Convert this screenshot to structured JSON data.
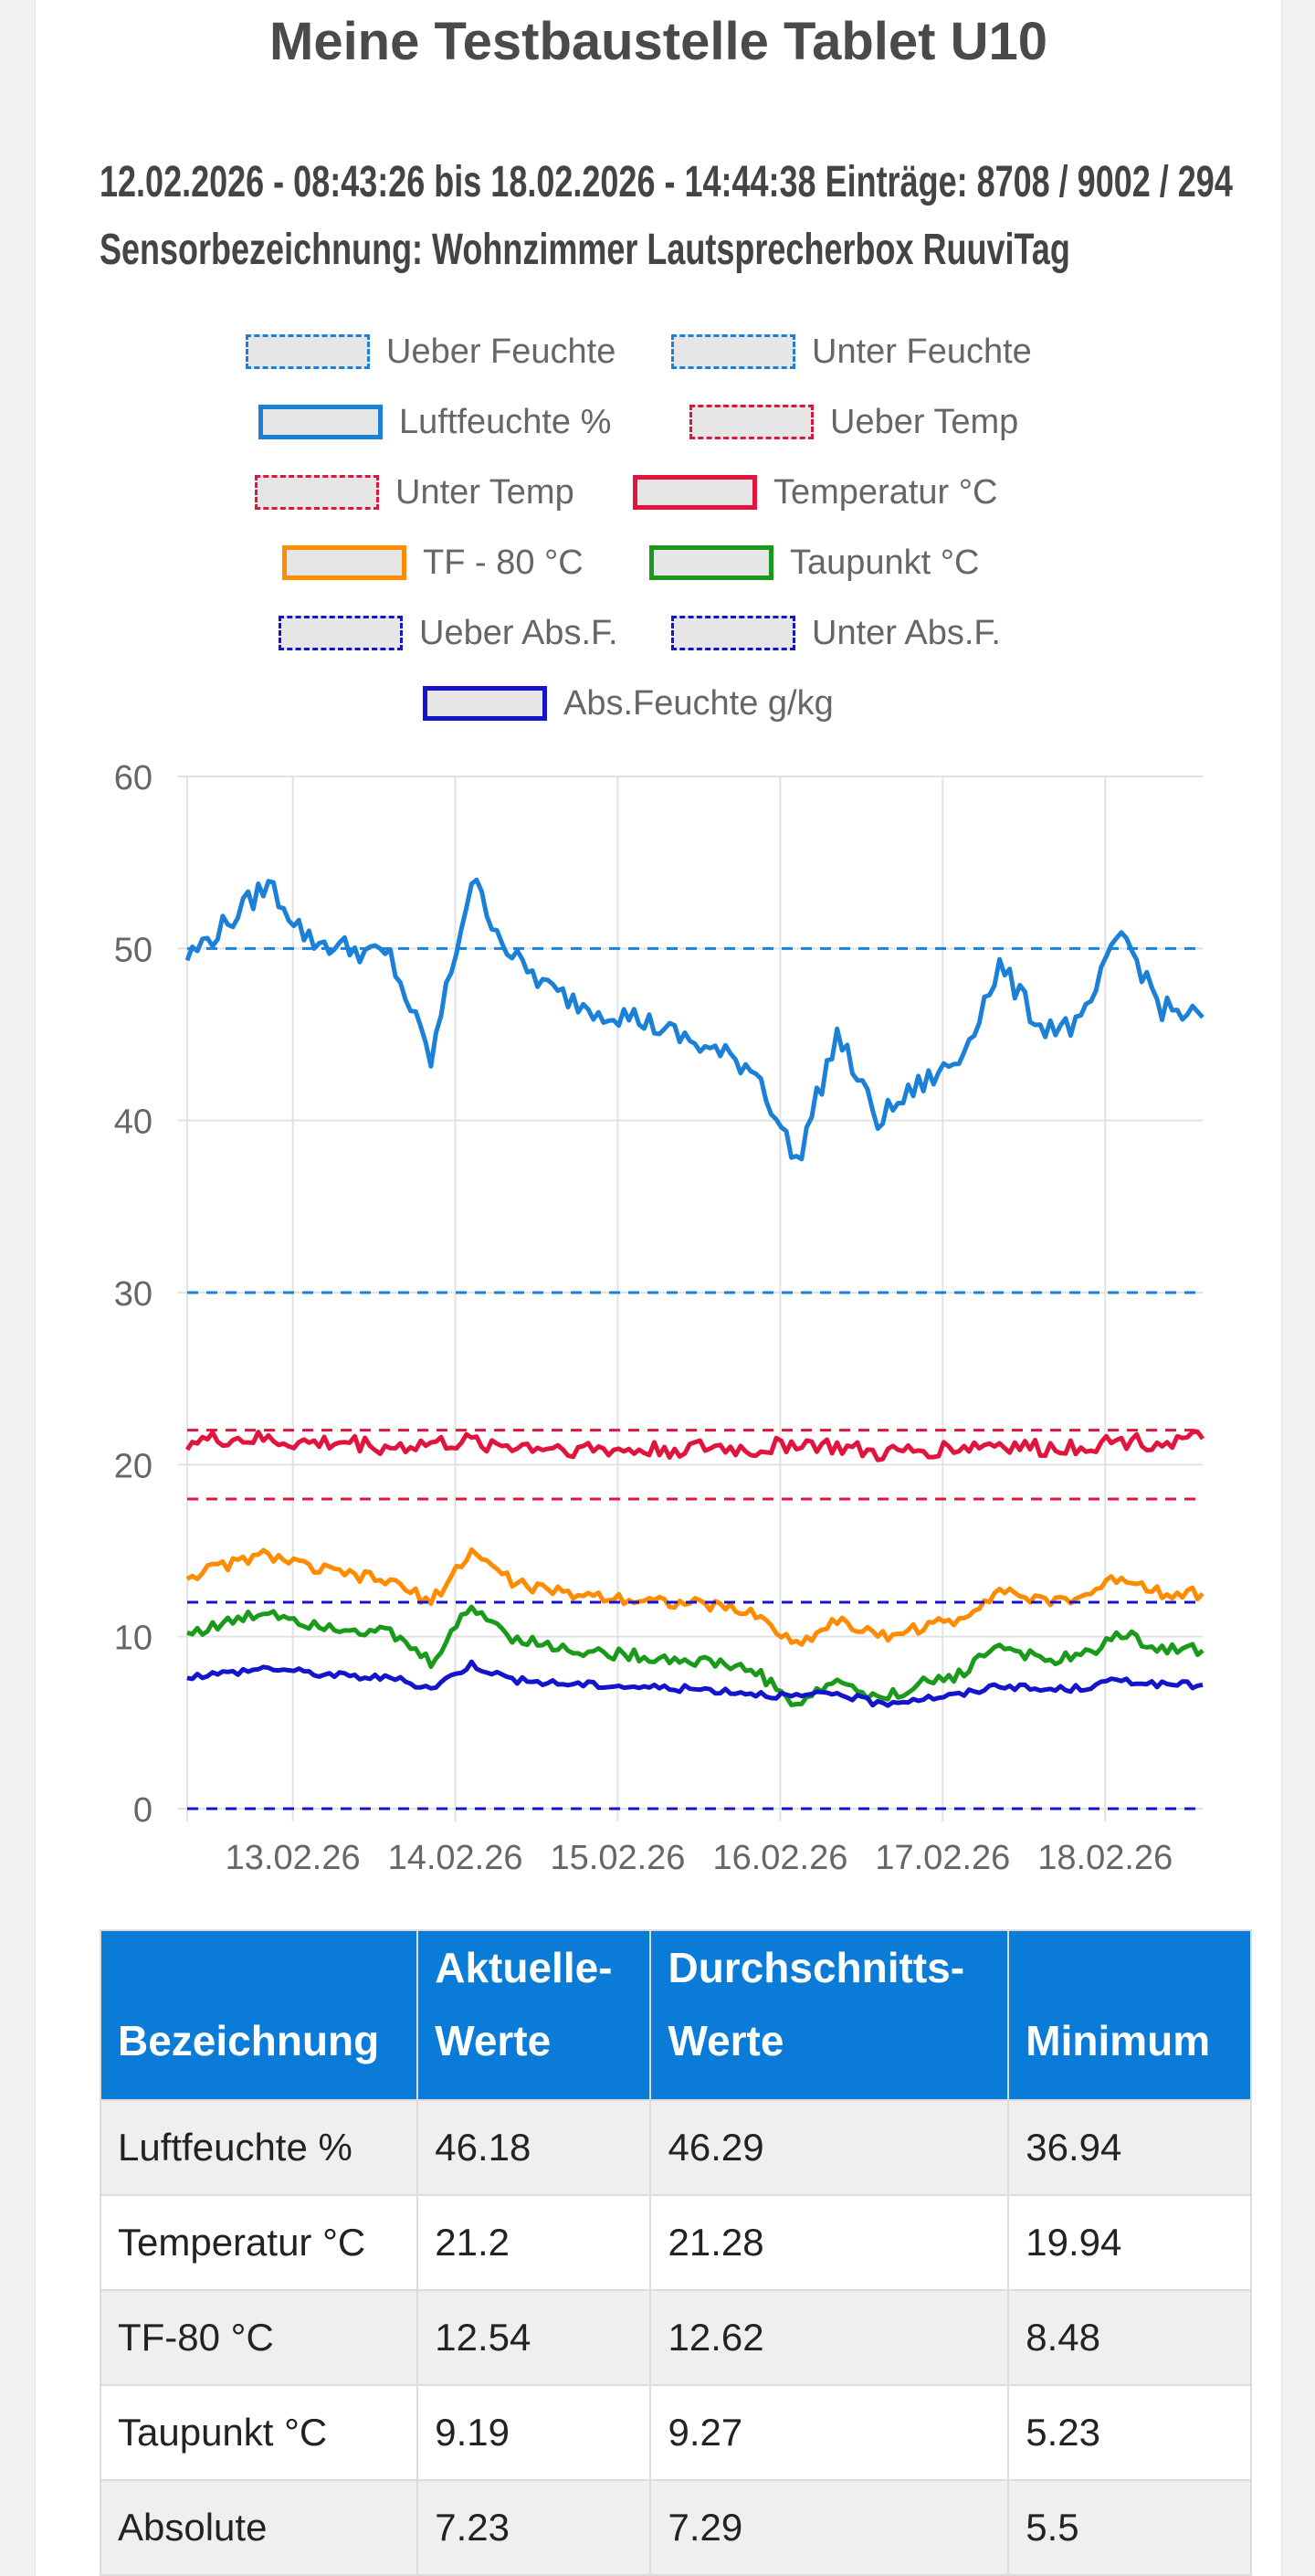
{
  "title": "Meine Testbaustelle Tablet U10",
  "subtitle_line1": "12.02.2026 - 08:43:26 bis 18.02.2026 - 14:44:38 Einträge: 8708 / 9002 / 294",
  "subtitle_line2": "Sensorbezeichnung: Wohnzimmer Lautsprecherbox RuuviTag",
  "legend": [
    {
      "label": "Ueber Feuchte",
      "color": "#1a80d8",
      "style": "dashed"
    },
    {
      "label": "Unter Feuchte",
      "color": "#1a80d8",
      "style": "dashed"
    },
    {
      "label": "Luftfeuchte %",
      "color": "#1a80d8",
      "style": "solid"
    },
    {
      "label": "Ueber Temp",
      "color": "#e0143c",
      "style": "dashed"
    },
    {
      "label": "Unter Temp",
      "color": "#e0143c",
      "style": "dashed"
    },
    {
      "label": "Temperatur °C",
      "color": "#e0143c",
      "style": "solid"
    },
    {
      "label": "TF - 80 °C",
      "color": "#ff8c00",
      "style": "solid"
    },
    {
      "label": "Taupunkt °C",
      "color": "#1a9a1a",
      "style": "solid"
    },
    {
      "label": "Ueber Abs.F.",
      "color": "#1414cc",
      "style": "dashed"
    },
    {
      "label": "Unter Abs.F.",
      "color": "#1414cc",
      "style": "dashed"
    },
    {
      "label": "Abs.Feuchte g/kg",
      "color": "#1414cc",
      "style": "solid"
    }
  ],
  "chart_data": {
    "type": "line",
    "ylim": [
      0,
      60
    ],
    "yticks": [
      "0",
      "10",
      "20",
      "30",
      "40",
      "50",
      "60"
    ],
    "xticks": [
      "13.02.26",
      "14.02.26",
      "15.02.26",
      "16.02.26",
      "17.02.26",
      "18.02.26"
    ],
    "grid": true,
    "legend_position": "top",
    "x_days": [
      0,
      0.25,
      0.5,
      0.75,
      1.0,
      1.25,
      1.5,
      1.75,
      2.0,
      2.25,
      2.5,
      2.75,
      3.0,
      3.25,
      3.5,
      3.75,
      4.0,
      4.25,
      4.5,
      4.75,
      5.0,
      5.25,
      5.5,
      5.75,
      6.0,
      6.25
    ],
    "series": [
      {
        "name": "Ueber Feuchte",
        "color": "#1a80d8",
        "dashed": true,
        "constant": 50
      },
      {
        "name": "Unter Feuchte",
        "color": "#1a80d8",
        "dashed": true,
        "constant": 30
      },
      {
        "name": "Luftfeuchte %",
        "color": "#1a80d8",
        "values": [
          49.5,
          51.5,
          53.8,
          50.5,
          50.0,
          49.5,
          43.5,
          54.0,
          49.5,
          47.5,
          46.5,
          46.0,
          45.0,
          44.0,
          43.0,
          37.5,
          45.0,
          40.0,
          42.0,
          43.5,
          49.0,
          45.5,
          45.5,
          51.0,
          46.5,
          46.0
        ]
      },
      {
        "name": "Ueber Temp",
        "color": "#e0143c",
        "dashed": true,
        "constant": 22
      },
      {
        "name": "Unter Temp",
        "color": "#e0143c",
        "dashed": true,
        "constant": 18
      },
      {
        "name": "Temperatur °C",
        "color": "#e0143c",
        "values": [
          21.3,
          21.5,
          21.4,
          21.2,
          21.3,
          21.0,
          21.2,
          21.3,
          21.1,
          21.0,
          20.9,
          20.8,
          20.9,
          21.0,
          20.8,
          21.3,
          21.0,
          20.6,
          20.8,
          21.0,
          21.2,
          20.9,
          21.1,
          21.4,
          21.3,
          21.5
        ]
      },
      {
        "name": "TF - 80 °C",
        "color": "#ff8c00",
        "values": [
          13.5,
          14.2,
          14.8,
          14.0,
          13.6,
          13.2,
          12.0,
          15.0,
          13.2,
          12.6,
          12.4,
          12.2,
          12.0,
          11.8,
          11.3,
          9.5,
          11.0,
          10.0,
          10.5,
          11.0,
          12.8,
          12.0,
          12.3,
          13.5,
          12.6,
          12.5
        ]
      },
      {
        "name": "Taupunkt °C",
        "color": "#1a9a1a",
        "values": [
          10.2,
          10.8,
          11.5,
          10.8,
          10.5,
          10.2,
          8.5,
          11.8,
          10.0,
          9.4,
          9.1,
          8.9,
          8.7,
          8.5,
          8.0,
          6.0,
          7.5,
          6.3,
          7.2,
          7.8,
          9.6,
          8.6,
          8.8,
          10.2,
          9.3,
          9.2
        ]
      },
      {
        "name": "Ueber Abs.F.",
        "color": "#1414cc",
        "dashed": true,
        "constant": 12
      },
      {
        "name": "Unter Abs.F.",
        "color": "#1414cc",
        "dashed": true,
        "constant": 0
      },
      {
        "name": "Abs.Feuchte g/kg",
        "color": "#1414cc",
        "values": [
          7.7,
          7.9,
          8.2,
          7.9,
          7.7,
          7.6,
          7.0,
          8.4,
          7.5,
          7.3,
          7.2,
          7.1,
          7.0,
          6.9,
          6.7,
          6.5,
          6.7,
          6.1,
          6.4,
          6.6,
          7.2,
          6.9,
          7.0,
          7.5,
          7.2,
          7.2
        ]
      }
    ]
  },
  "table": {
    "headers": [
      {
        "line1": "",
        "line2": "Bezeichnung"
      },
      {
        "line1": "Aktuelle-",
        "line2": "Werte"
      },
      {
        "line1": "Durchschnitts-",
        "line2": "Werte"
      },
      {
        "line1": "",
        "line2": "Minimum"
      }
    ],
    "rows": [
      [
        "Luftfeuchte %",
        "46.18",
        "46.29",
        "36.94"
      ],
      [
        "Temperatur °C",
        "21.2",
        "21.28",
        "19.94"
      ],
      [
        "TF-80 °C",
        "12.54",
        "12.62",
        "8.48"
      ],
      [
        "Taupunkt °C",
        "9.19",
        "9.27",
        "5.23"
      ],
      [
        "Absolute",
        "7.23",
        "7.29",
        "5.5"
      ]
    ]
  }
}
